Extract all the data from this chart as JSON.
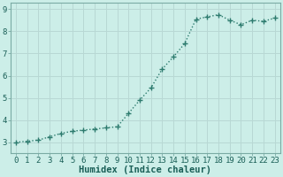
{
  "x": [
    0,
    1,
    2,
    3,
    4,
    5,
    6,
    7,
    8,
    9,
    10,
    11,
    12,
    13,
    14,
    15,
    16,
    17,
    18,
    19,
    20,
    21,
    22,
    23
  ],
  "y": [
    3.0,
    3.05,
    3.1,
    3.25,
    3.4,
    3.5,
    3.55,
    3.6,
    3.65,
    3.7,
    4.3,
    4.9,
    5.45,
    6.3,
    6.85,
    7.45,
    8.55,
    8.65,
    8.75,
    8.5,
    8.3,
    8.5,
    8.45,
    8.6
  ],
  "line_color": "#2d7b6e",
  "marker": "+",
  "marker_size": 4,
  "bg_color": "#cceee8",
  "grid_color": "#b8d8d4",
  "xlabel": "Humidex (Indice chaleur)",
  "xlim": [
    -0.5,
    23.5
  ],
  "ylim": [
    2.5,
    9.3
  ],
  "yticks": [
    3,
    4,
    5,
    6,
    7,
    8,
    9
  ],
  "xtick_labels": [
    "0",
    "1",
    "2",
    "3",
    "4",
    "5",
    "6",
    "7",
    "8",
    "9",
    "10",
    "11",
    "12",
    "13",
    "14",
    "15",
    "16",
    "17",
    "18",
    "19",
    "20",
    "21",
    "22",
    "23"
  ],
  "xlabel_fontsize": 7.5,
  "tick_fontsize": 6.5,
  "line_width": 1.0,
  "spine_color": "#7aaba4",
  "text_color": "#1a5f57"
}
